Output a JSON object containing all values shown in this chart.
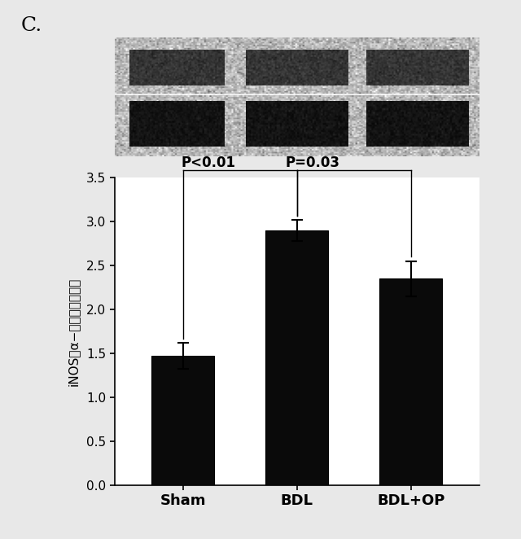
{
  "categories": [
    "Sham",
    "BDL",
    "BDL+OP"
  ],
  "values": [
    1.47,
    2.9,
    2.35
  ],
  "errors": [
    0.15,
    0.12,
    0.2
  ],
  "bar_color": "#0a0a0a",
  "bar_width": 0.55,
  "ylim": [
    0,
    3.5
  ],
  "yticks": [
    0.0,
    0.5,
    1.0,
    1.5,
    2.0,
    2.5,
    3.0,
    3.5
  ],
  "ylabel": "iNOS／α−チューブリン比",
  "panel_label": "C.",
  "sig1_text": "P<0.01",
  "sig2_text": "P=0.03",
  "background_color": "#e8e8e8",
  "blot_bg_color": "#b8b8b8",
  "band1_color": "#151515",
  "band2_color": "#080808",
  "band1_alpha": 0.8,
  "band2_alpha": 0.95
}
